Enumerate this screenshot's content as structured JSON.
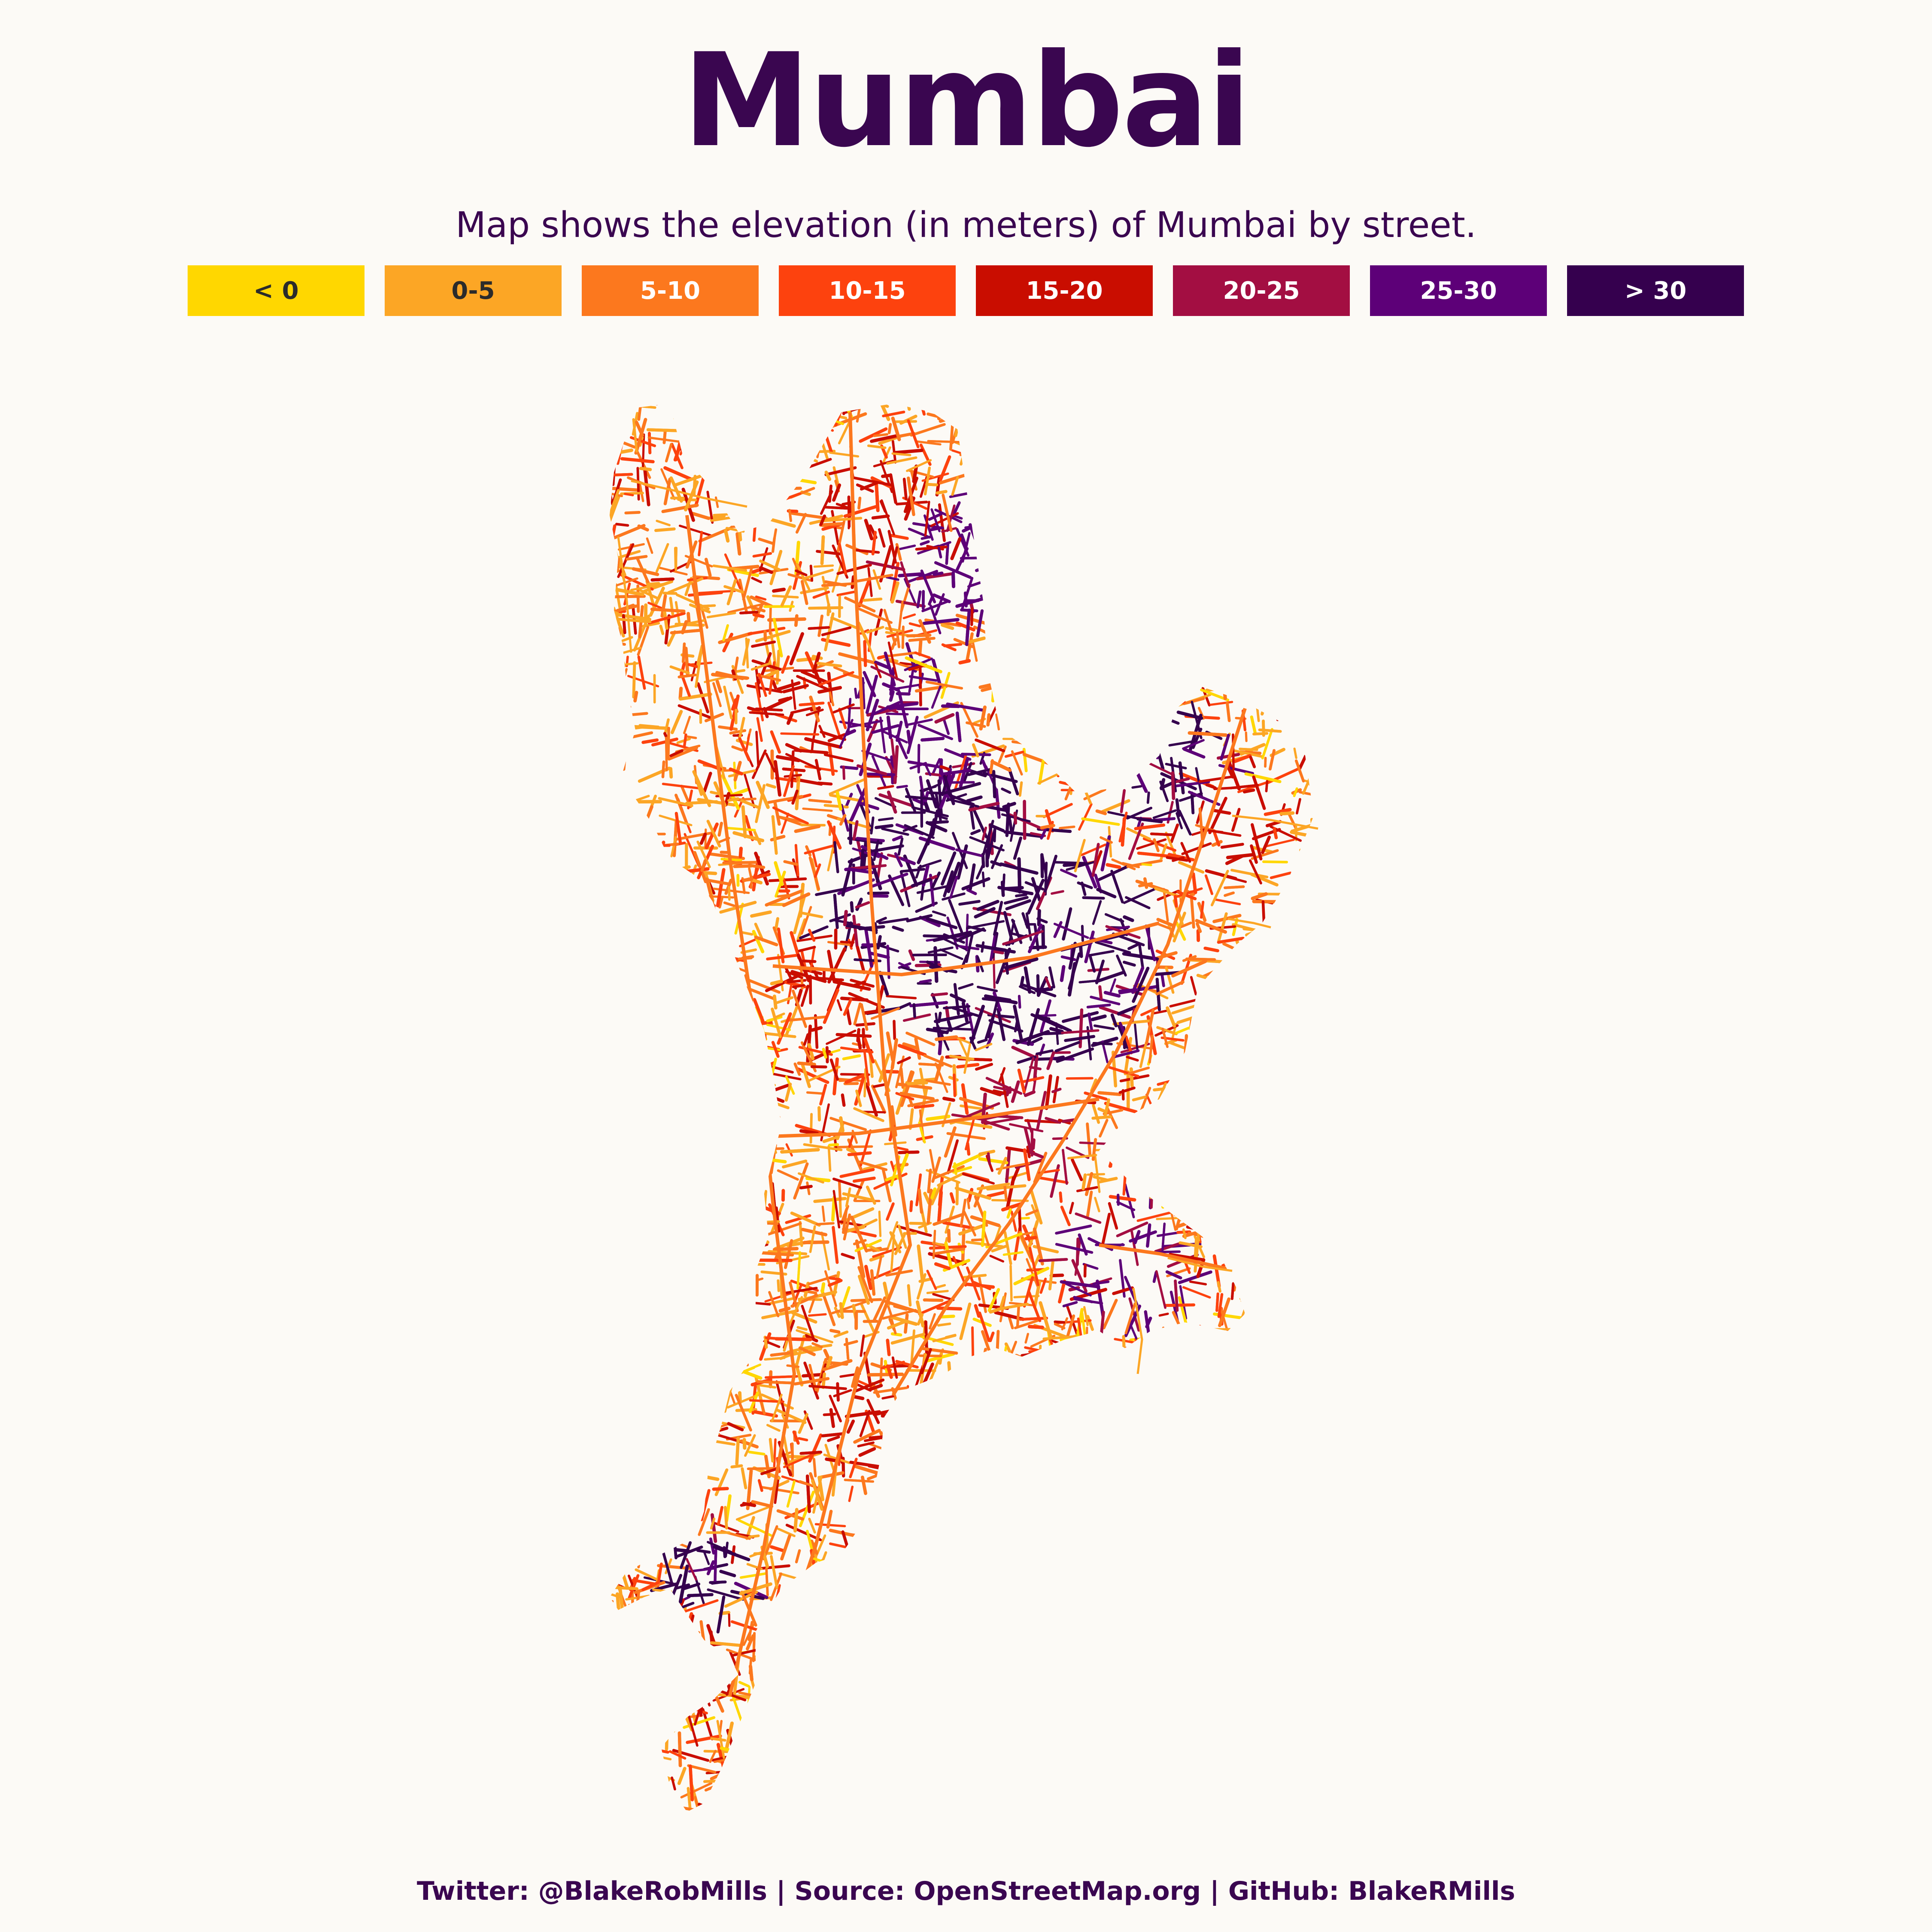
{
  "title": "Mumbai",
  "subtitle": "Map shows the elevation (in meters) of Mumbai by street.",
  "legend": [
    {
      "label": "< 0",
      "color": "#ffd700",
      "text_color": "#2b2b2b"
    },
    {
      "label": "0-5",
      "color": "#fca625",
      "text_color": "#2b2b2b"
    },
    {
      "label": "5-10",
      "color": "#fc781e",
      "text_color": "#ffffff"
    },
    {
      "label": "10-15",
      "color": "#fd420e",
      "text_color": "#ffffff"
    },
    {
      "label": "15-20",
      "color": "#c90d00",
      "text_color": "#ffffff"
    },
    {
      "label": "20-25",
      "color": "#a30e42",
      "text_color": "#ffffff"
    },
    {
      "label": "25-30",
      "color": "#5d0078",
      "text_color": "#ffffff"
    },
    {
      "label": "> 30",
      "color": "#35004e",
      "text_color": "#ffffff"
    }
  ],
  "footer": "Twitter: @BlakeRobMills | Source: OpenStreetMap.org | GitHub: BlakeRMills",
  "colors": {
    "background": "#fcfaf6",
    "text": "#3a0650"
  }
}
